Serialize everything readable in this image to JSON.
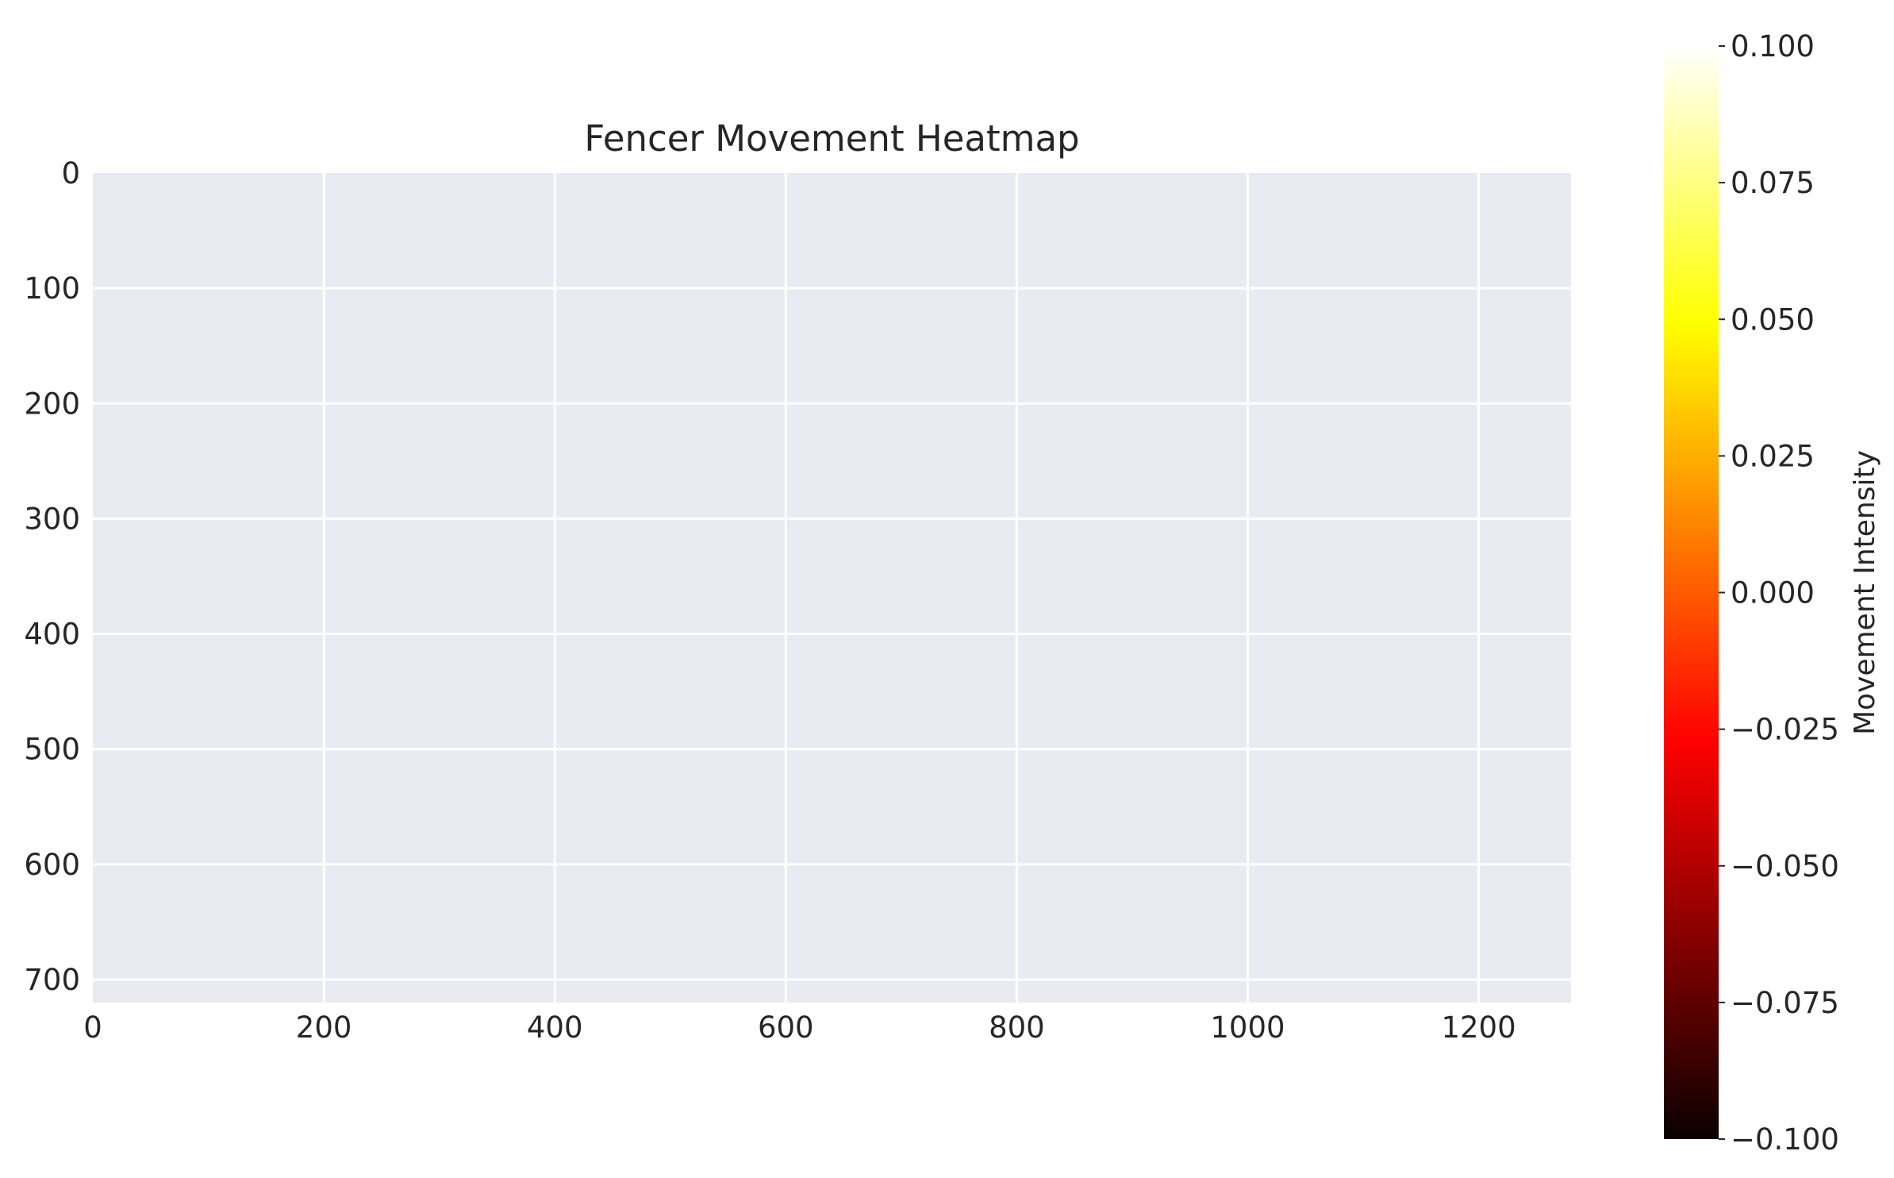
{
  "chart_data": {
    "type": "heatmap",
    "title": "Fencer Movement Heatmap",
    "xlabel": "",
    "ylabel": "",
    "xlim": [
      0,
      1280
    ],
    "ylim": [
      720,
      0
    ],
    "y_inverted": true,
    "x_ticks": [
      0,
      200,
      400,
      600,
      800,
      1000,
      1200
    ],
    "y_ticks": [
      0,
      100,
      200,
      300,
      400,
      500,
      600,
      700
    ],
    "grid": true,
    "values": [],
    "colorbar": {
      "label": "Movement Intensity",
      "colormap": "hot",
      "min": -0.1,
      "max": 0.1,
      "ticks": [
        {
          "value": 0.1,
          "label": "0.100"
        },
        {
          "value": 0.075,
          "label": "0.075"
        },
        {
          "value": 0.05,
          "label": "0.050"
        },
        {
          "value": 0.025,
          "label": "0.025"
        },
        {
          "value": 0.0,
          "label": "0.000"
        },
        {
          "value": -0.025,
          "label": "−0.025"
        },
        {
          "value": -0.05,
          "label": "−0.050"
        },
        {
          "value": -0.075,
          "label": "−0.075"
        },
        {
          "value": -0.1,
          "label": "−0.100"
        }
      ]
    }
  },
  "colors": {
    "plot_background": "#eaeaf2",
    "grid": "#ffffff",
    "text": "#262626"
  }
}
